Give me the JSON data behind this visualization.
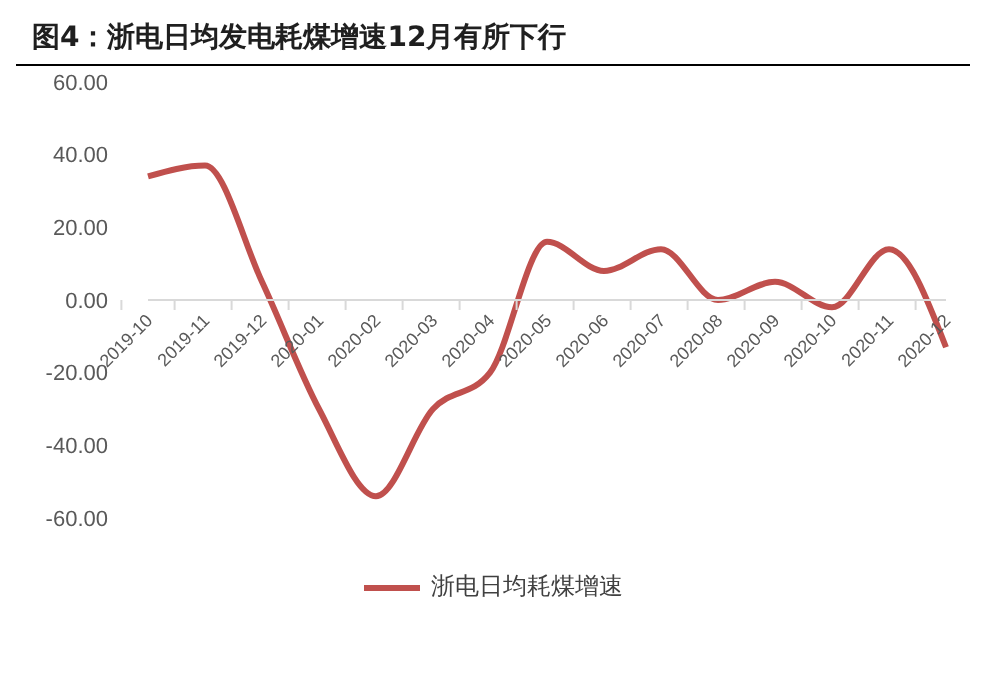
{
  "chart_data": {
    "type": "line",
    "title": "图4：浙电日均发电耗煤增速12月有所下行",
    "categories": [
      "2019-10",
      "2019-11",
      "2019-12",
      "2020-01",
      "2020-02",
      "2020-03",
      "2020-04",
      "2020-05",
      "2020-06",
      "2020-07",
      "2020-08",
      "2020-09",
      "2020-10",
      "2020-11",
      "2020-12"
    ],
    "series": [
      {
        "name": "浙电日均耗煤增速",
        "color": "#c0504d",
        "values": [
          34,
          37,
          5,
          -30,
          -54,
          -30,
          -20,
          16,
          8,
          14,
          0,
          5,
          -2,
          14,
          -13
        ]
      }
    ],
    "ylim": [
      -60,
      60
    ],
    "yticks": [
      {
        "value": -60,
        "label": "-60.00"
      },
      {
        "value": -40,
        "label": "-40.00"
      },
      {
        "value": -20,
        "label": "-20.00"
      },
      {
        "value": 0,
        "label": "0.00"
      },
      {
        "value": 20,
        "label": "20.00"
      },
      {
        "value": 40,
        "label": "40.00"
      },
      {
        "value": 60,
        "label": "60.00"
      }
    ],
    "grid": false,
    "legend": "bottom",
    "marker": "none",
    "line_style": "solid"
  }
}
